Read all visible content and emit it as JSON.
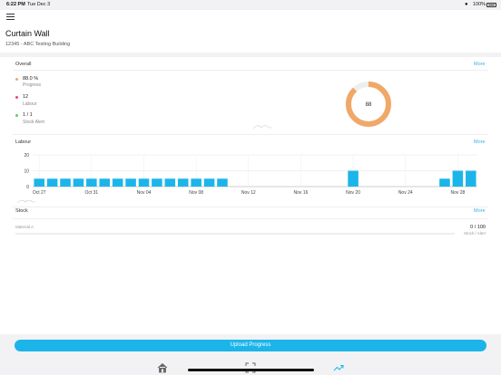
{
  "status": {
    "time": "6:22 PM",
    "date": "Tue Dec 3",
    "battery": "100%"
  },
  "header": {
    "title": "Curtain Wall",
    "subtitle": "12345 - ABC Testing Building"
  },
  "overall": {
    "title": "Overall",
    "more": "More",
    "items": [
      {
        "value": "88.0 %",
        "label": "Progress",
        "color": "#f0a868"
      },
      {
        "value": "12",
        "label": "Labour",
        "color": "#e94b6a"
      },
      {
        "value": "1 / 1",
        "label": "Stock Alert",
        "color": "#4cd964"
      }
    ],
    "donut_value": "88",
    "progress_fraction": 0.88
  },
  "labour": {
    "title": "Labour",
    "more": "More"
  },
  "chart_data": {
    "type": "bar",
    "ylim": [
      0,
      20
    ],
    "yticks": [
      "20",
      "10",
      "0"
    ],
    "xticks": [
      "Oct 27",
      "Oct 31",
      "Nov 04",
      "Nov 08",
      "Nov 12",
      "Nov 16",
      "Nov 20",
      "Nov 24",
      "Nov 28"
    ],
    "x": [
      "Oct 27",
      "Oct 28",
      "Oct 29",
      "Oct 30",
      "Oct 31",
      "Nov 01",
      "Nov 02",
      "Nov 03",
      "Nov 04",
      "Nov 05",
      "Nov 06",
      "Nov 07",
      "Nov 08",
      "Nov 09",
      "Nov 10",
      "Nov 11",
      "Nov 12",
      "Nov 13",
      "Nov 14",
      "Nov 15",
      "Nov 16",
      "Nov 17",
      "Nov 18",
      "Nov 19",
      "Nov 20",
      "Nov 21",
      "Nov 22",
      "Nov 23",
      "Nov 24",
      "Nov 25",
      "Nov 26",
      "Nov 27",
      "Nov 28",
      "Nov 29"
    ],
    "values": [
      5,
      5,
      5,
      5,
      5,
      5,
      5,
      5,
      5,
      5,
      5,
      5,
      5,
      5,
      5,
      0,
      0,
      0,
      0,
      0,
      0,
      0,
      0,
      0,
      10,
      0,
      0,
      0,
      0,
      0,
      0,
      5,
      10,
      10
    ],
    "color": "#1bb5e9"
  },
  "stock": {
    "title": "Stock",
    "more": "More",
    "material": "Material A",
    "value": "0 / 100",
    "label": "Stock / Alert"
  },
  "actions": {
    "upload": "Upload Progress"
  },
  "tabs": [
    {
      "icon": "home-icon"
    },
    {
      "icon": "scan-icon"
    },
    {
      "icon": "trend-icon"
    }
  ],
  "colors": {
    "accent": "#1bb5e9",
    "link": "#3aaee0"
  }
}
